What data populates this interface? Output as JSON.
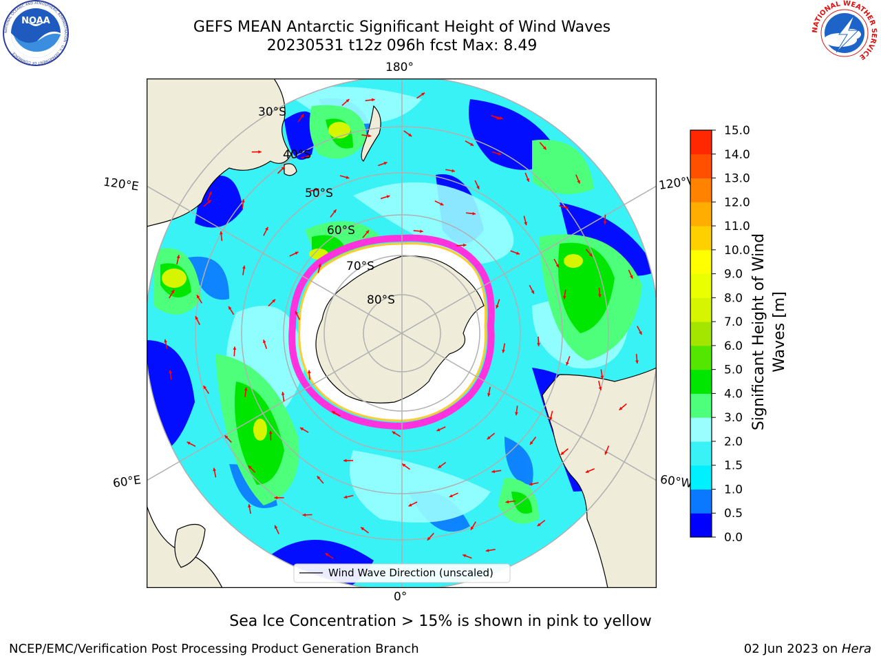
{
  "header": {
    "title_line1": "GEFS MEAN Antarctic Significant Height of Wind Waves",
    "title_line2": "20230531 t12z 096h fcst   Max: 8.49"
  },
  "logos": {
    "noaa_text": "NOAA",
    "noaa_ring": "NATIONAL OCEANIC AND ATMOSPHERIC ADMINISTRATION · U.S. DEPARTMENT OF COMMERCE",
    "nws_ring": "NATIONAL WEATHER SERVICE"
  },
  "map": {
    "lon_labels": {
      "top": "180°",
      "bottom": "0°",
      "upper_left": "120°E",
      "upper_right": "120°W",
      "lower_left": "60°E",
      "lower_right": "60°W"
    },
    "lat_labels": [
      "30°S",
      "40°S",
      "50°S",
      "60°S",
      "70°S",
      "80°S"
    ],
    "legend_label": "Wind Wave Direction (unscaled)",
    "land_color": "#efecd9",
    "ocean_base_color": "#38f2f5",
    "arrow_color": "#ff0000"
  },
  "colorbar": {
    "label_line1": "Significant Height of Wind",
    "label_line2": "Waves [m]",
    "ticks": [
      "0.0",
      "0.5",
      "1.0",
      "1.5",
      "2.0",
      "3.0",
      "4.0",
      "5.0",
      "6.0",
      "7.0",
      "8.0",
      "9.0",
      "10.0",
      "11.0",
      "12.0",
      "13.0",
      "14.0",
      "15.0"
    ],
    "colors": [
      "#0000ff",
      "#0a78ff",
      "#00f0ff",
      "#38f2f5",
      "#9afeff",
      "#4dff7a",
      "#00e600",
      "#55e600",
      "#a5e600",
      "#d6f500",
      "#eaff00",
      "#ffff00",
      "#ffd000",
      "#ffae00",
      "#ff8200",
      "#ff5000",
      "#ff2800",
      "#ff0000"
    ]
  },
  "footer": {
    "note": "Sea Ice Concentration > 15% is shown in pink to yellow",
    "credit": "NCEP/EMC/Verification Post Processing Product Generation Branch",
    "date_prefix": "02 Jun 2023 on ",
    "date_machine": "Hera"
  }
}
